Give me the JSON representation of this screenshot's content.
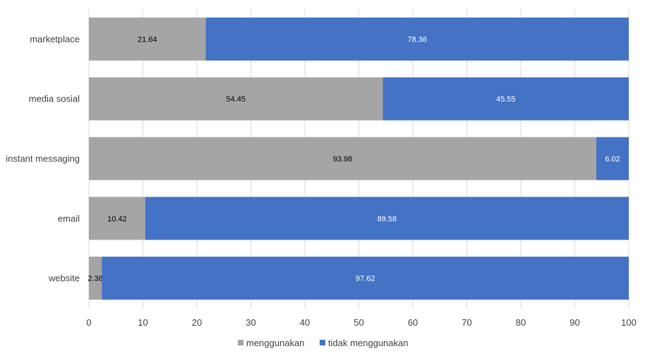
{
  "chart_data": {
    "type": "bar",
    "orientation": "horizontal",
    "stacked": true,
    "categories": [
      "marketplace",
      "media sosial",
      "instant messaging",
      "email",
      "website"
    ],
    "series": [
      {
        "name": "menggunakan",
        "color": "#A5A5A5",
        "values": [
          21.64,
          54.45,
          93.98,
          10.42,
          2.38
        ]
      },
      {
        "name": "tidak menggunakan",
        "color": "#4472C4",
        "values": [
          78.36,
          45.55,
          6.02,
          89.58,
          97.62
        ]
      }
    ],
    "xlim": [
      0,
      100
    ],
    "xticks": [
      0,
      10,
      20,
      30,
      40,
      50,
      60,
      70,
      80,
      90,
      100
    ],
    "grid": true,
    "legend_position": "bottom",
    "data_labels": true
  }
}
